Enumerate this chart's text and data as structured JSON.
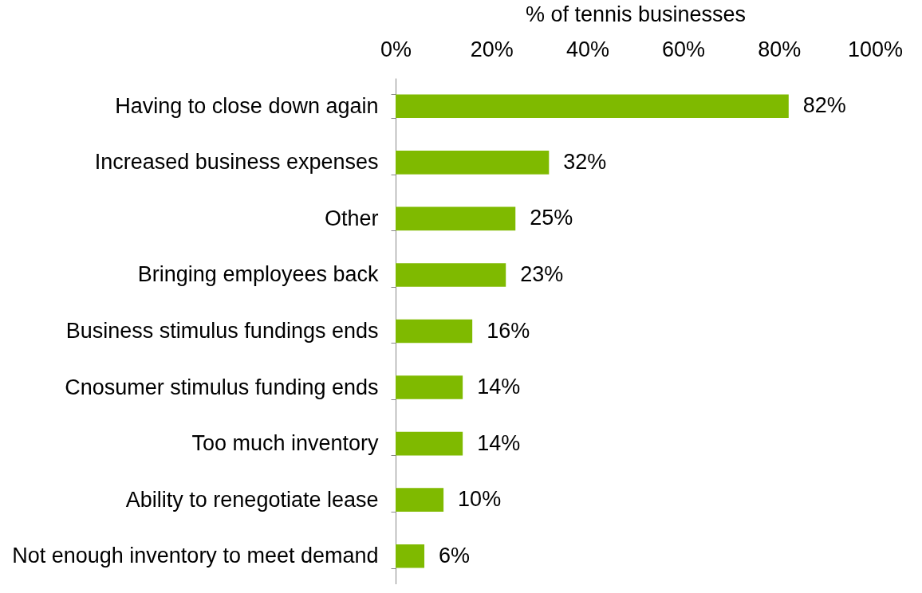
{
  "chart_data": {
    "type": "bar",
    "orientation": "horizontal",
    "xlabel": "% of tennis businesses",
    "categories": [
      "Having to close down again",
      "Increased business expenses",
      "Other",
      "Bringing employees back",
      "Business stimulus fundings ends",
      "Cnosumer stimulus funding ends",
      "Too much inventory",
      "Ability to renegotiate lease",
      "Not enough inventory to meet demand"
    ],
    "values": [
      82,
      32,
      25,
      23,
      16,
      14,
      14,
      10,
      6
    ],
    "value_labels": [
      "82%",
      "32%",
      "25%",
      "23%",
      "16%",
      "14%",
      "14%",
      "10%",
      "6%"
    ],
    "color": "#7fba00",
    "xlim": [
      0,
      100
    ],
    "xticks": [
      {
        "value": 0,
        "label": "0%"
      },
      {
        "value": 20,
        "label": "20%"
      },
      {
        "value": 40,
        "label": "40%"
      },
      {
        "value": 60,
        "label": "60%"
      },
      {
        "value": 80,
        "label": "80%"
      },
      {
        "value": 100,
        "label": "100%"
      }
    ],
    "grid": false
  }
}
